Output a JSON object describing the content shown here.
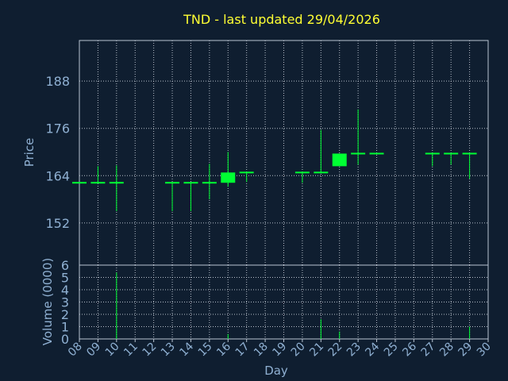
{
  "chart_data": {
    "type": "candlestick",
    "title": "TND - last updated 29/04/2026",
    "xlabel": "Day",
    "ylabel_price": "Price",
    "ylabel_volume": "Volume (0000)",
    "x_ticks": [
      "08",
      "09",
      "10",
      "11",
      "12",
      "13",
      "14",
      "15",
      "16",
      "17",
      "18",
      "19",
      "20",
      "21",
      "22",
      "23",
      "24",
      "25",
      "26",
      "27",
      "28",
      "29",
      "30"
    ],
    "price_ticks": [
      152,
      164,
      176,
      188
    ],
    "price_ylim": [
      141.3,
      198.3
    ],
    "volume_ticks": [
      0,
      1,
      2,
      3,
      4,
      5,
      6
    ],
    "volume_ylim": [
      0,
      6
    ],
    "grid": true,
    "candle_color": "#00ff33",
    "candles": [
      {
        "day": "08",
        "open": 162.2,
        "high": 162.2,
        "low": 162.2,
        "close": 162.2,
        "volume": 0
      },
      {
        "day": "09",
        "open": 162.2,
        "high": 166.4,
        "low": 162.2,
        "close": 162.2,
        "volume": 0
      },
      {
        "day": "10",
        "open": 162.2,
        "high": 166.6,
        "low": 155.0,
        "close": 162.2,
        "volume": 5.4
      },
      {
        "day": "13",
        "open": 162.2,
        "high": 162.2,
        "low": 155.0,
        "close": 162.2,
        "volume": 0
      },
      {
        "day": "14",
        "open": 162.2,
        "high": 162.2,
        "low": 155.0,
        "close": 162.2,
        "volume": 0
      },
      {
        "day": "15",
        "open": 162.2,
        "high": 167.0,
        "low": 158.0,
        "close": 162.2,
        "volume": 0
      },
      {
        "day": "16",
        "open": 162.2,
        "high": 170.0,
        "low": 161.2,
        "close": 164.8,
        "volume": 0.4
      },
      {
        "day": "17",
        "open": 164.8,
        "high": 164.8,
        "low": 162.4,
        "close": 164.8,
        "volume": 0
      },
      {
        "day": "20",
        "open": 164.8,
        "high": 164.8,
        "low": 162.2,
        "close": 164.8,
        "volume": 0
      },
      {
        "day": "21",
        "open": 164.8,
        "high": 175.6,
        "low": 164.8,
        "close": 164.8,
        "volume": 1.6
      },
      {
        "day": "22",
        "open": 166.4,
        "high": 169.6,
        "low": 166.4,
        "close": 169.6,
        "volume": 0.6
      },
      {
        "day": "23",
        "open": 169.6,
        "high": 180.8,
        "low": 166.8,
        "close": 169.6,
        "volume": 0
      },
      {
        "day": "24",
        "open": 169.6,
        "high": 169.6,
        "low": 169.6,
        "close": 169.6,
        "volume": 0
      },
      {
        "day": "27",
        "open": 169.6,
        "high": 169.6,
        "low": 166.4,
        "close": 169.6,
        "volume": 0
      },
      {
        "day": "28",
        "open": 169.6,
        "high": 169.6,
        "low": 166.8,
        "close": 169.6,
        "volume": 0
      },
      {
        "day": "29",
        "open": 169.6,
        "high": 169.6,
        "low": 163.2,
        "close": 169.6,
        "volume": 1.0
      }
    ]
  }
}
